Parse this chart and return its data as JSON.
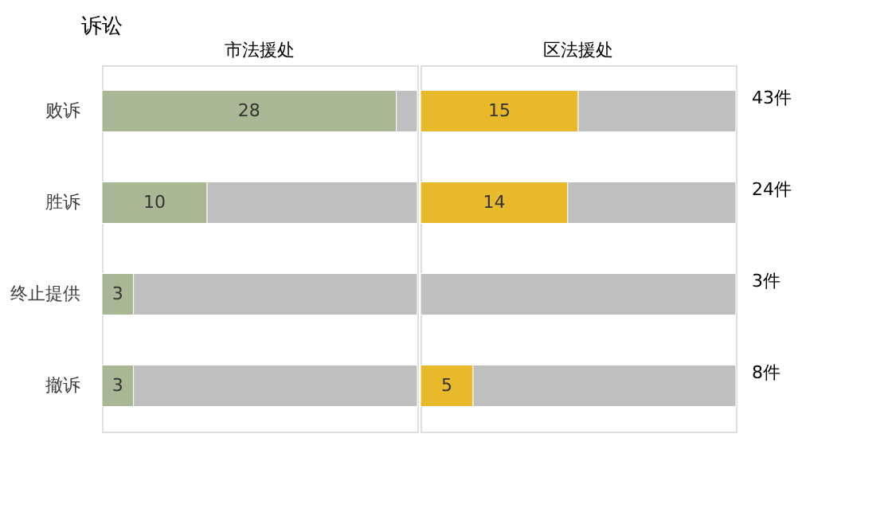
{
  "chart_data": [
    {
      "type": "bar",
      "orientation": "horizontal",
      "stacked": true,
      "title": "诉讼",
      "subtitle": "市法援处",
      "categories": [
        "败诉",
        "胜诉",
        "终止提供",
        "撤诉"
      ],
      "xlim": [
        0,
        30
      ],
      "tick_labels": "y",
      "series": [
        {
          "color": "#a9b794",
          "values": [
            28,
            10,
            3,
            3
          ],
          "value_labels": [
            "28",
            "10",
            "3",
            "3"
          ]
        },
        {
          "color": "#bfbfbf",
          "values": [
            2,
            20,
            27,
            27
          ]
        }
      ]
    },
    {
      "type": "bar",
      "orientation": "horizontal",
      "stacked": true,
      "subtitle": "区法援处",
      "categories": [
        null,
        null,
        null,
        null
      ],
      "xlim": [
        0,
        30
      ],
      "tick_labels": false,
      "annotations": [
        "43件",
        "24件",
        "3件",
        "8件"
      ],
      "series": [
        {
          "color": "#e8b92a",
          "values": [
            15,
            14,
            0,
            5
          ],
          "value_labels": [
            "15",
            "14",
            null,
            "5"
          ]
        },
        {
          "color": "#bfbfbf",
          "values": [
            15,
            16,
            30,
            25
          ]
        }
      ]
    }
  ]
}
